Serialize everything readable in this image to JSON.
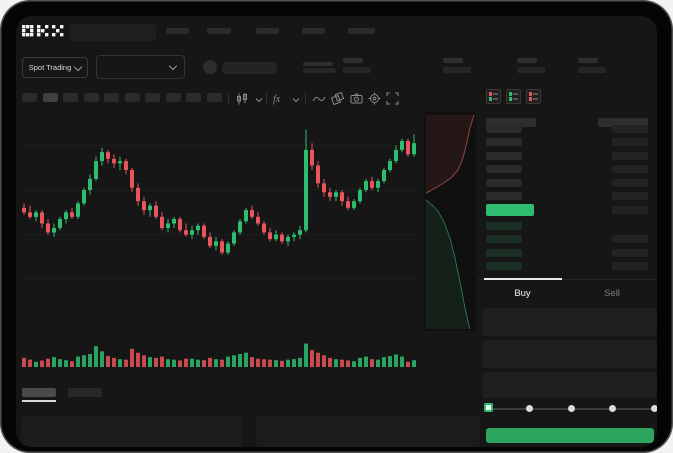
{
  "market_selector": {
    "label": "Spot Trading"
  },
  "toolbar": {
    "timeframe_placeholder_count": 10,
    "icons": [
      "candles-style-icon",
      "chevron-down-icon",
      "indicators-icon",
      "chevron-down-icon",
      "line-tool-icon",
      "compare-icon",
      "camera-icon",
      "settings-icon",
      "fullscreen-icon"
    ]
  },
  "order_book": {
    "layout_icons": [
      "book-all-icon",
      "book-asks-icon",
      "book-bids-icon"
    ],
    "asks": [
      {},
      {},
      {},
      {},
      {},
      {}
    ],
    "bids": [
      {
        "right_bar": false
      },
      {
        "right_bar": true
      },
      {
        "right_bar": true
      },
      {
        "right_bar": true
      }
    ],
    "last_price_highlight": "green"
  },
  "order_panel": {
    "tabs": [
      {
        "label": "Buy",
        "active": true
      },
      {
        "label": "Sell",
        "active": false
      }
    ],
    "slider": {
      "points": [
        0,
        25,
        50,
        75,
        100
      ],
      "value": 0
    }
  },
  "colors": {
    "up": "#2ebd70",
    "down": "#e8555a",
    "submit": "#2da55e",
    "background": "#161616",
    "frame": "#050505"
  },
  "chart_data": {
    "type": "candlestick",
    "title": "",
    "xlabel": "",
    "ylabel": "",
    "ylim": [
      0,
      100
    ],
    "grid_levels": [
      25,
      45,
      65,
      85
    ],
    "up_color": "#2ebd70",
    "down_color": "#e8555a",
    "candles": [
      [
        57,
        59,
        54,
        55
      ],
      [
        55,
        58,
        52,
        53
      ],
      [
        53,
        56,
        51,
        55
      ],
      [
        55,
        56,
        48,
        50
      ],
      [
        50,
        52,
        45,
        46
      ],
      [
        46,
        50,
        44,
        48
      ],
      [
        48,
        53,
        47,
        52
      ],
      [
        52,
        56,
        50,
        55
      ],
      [
        55,
        57,
        52,
        53
      ],
      [
        53,
        60,
        52,
        59
      ],
      [
        59,
        66,
        58,
        65
      ],
      [
        65,
        72,
        63,
        70
      ],
      [
        70,
        80,
        69,
        78
      ],
      [
        78,
        84,
        76,
        82
      ],
      [
        82,
        83,
        77,
        79
      ],
      [
        79,
        81,
        75,
        77
      ],
      [
        77,
        80,
        74,
        78
      ],
      [
        78,
        79,
        72,
        74
      ],
      [
        74,
        75,
        64,
        66
      ],
      [
        66,
        68,
        58,
        60
      ],
      [
        60,
        62,
        54,
        56
      ],
      [
        56,
        59,
        53,
        58
      ],
      [
        58,
        60,
        52,
        53
      ],
      [
        53,
        55,
        47,
        48
      ],
      [
        48,
        52,
        46,
        50
      ],
      [
        50,
        53,
        48,
        52
      ],
      [
        52,
        53,
        46,
        47
      ],
      [
        47,
        50,
        44,
        45
      ],
      [
        45,
        49,
        43,
        47
      ],
      [
        47,
        50,
        45,
        49
      ],
      [
        49,
        50,
        43,
        44
      ],
      [
        44,
        46,
        39,
        40
      ],
      [
        40,
        44,
        38,
        42
      ],
      [
        42,
        43,
        36,
        37
      ],
      [
        37,
        42,
        36,
        41
      ],
      [
        41,
        47,
        40,
        46
      ],
      [
        46,
        52,
        45,
        51
      ],
      [
        51,
        57,
        50,
        56
      ],
      [
        56,
        58,
        52,
        53
      ],
      [
        53,
        55,
        49,
        50
      ],
      [
        50,
        51,
        45,
        46
      ],
      [
        46,
        48,
        42,
        43
      ],
      [
        43,
        47,
        42,
        45
      ],
      [
        45,
        46,
        41,
        42
      ],
      [
        42,
        45,
        40,
        44
      ],
      [
        44,
        46,
        42,
        45
      ],
      [
        45,
        49,
        43,
        47
      ],
      [
        47,
        92,
        46,
        83
      ],
      [
        83,
        86,
        74,
        76
      ],
      [
        76,
        78,
        66,
        68
      ],
      [
        68,
        70,
        62,
        64
      ],
      [
        64,
        66,
        60,
        62
      ],
      [
        62,
        65,
        60,
        64
      ],
      [
        64,
        65,
        58,
        60
      ],
      [
        60,
        62,
        56,
        57
      ],
      [
        57,
        61,
        56,
        60
      ],
      [
        60,
        66,
        59,
        65
      ],
      [
        65,
        70,
        64,
        69
      ],
      [
        69,
        71,
        65,
        66
      ],
      [
        66,
        70,
        64,
        69
      ],
      [
        69,
        75,
        68,
        74
      ],
      [
        74,
        79,
        73,
        78
      ],
      [
        78,
        85,
        77,
        83
      ],
      [
        83,
        88,
        82,
        87
      ],
      [
        87,
        88,
        80,
        81
      ],
      [
        81,
        90,
        80,
        86
      ]
    ],
    "volume": [
      35,
      28,
      20,
      25,
      32,
      38,
      30,
      26,
      22,
      40,
      45,
      50,
      80,
      60,
      42,
      35,
      30,
      28,
      70,
      55,
      45,
      38,
      35,
      40,
      30,
      28,
      25,
      32,
      32,
      28,
      26,
      35,
      30,
      28,
      40,
      45,
      50,
      55,
      38,
      32,
      30,
      28,
      26,
      24,
      28,
      30,
      35,
      90,
      65,
      55,
      45,
      35,
      30,
      28,
      25,
      22,
      35,
      40,
      30,
      28,
      38,
      42,
      48,
      40,
      20,
      26
    ],
    "depth": {
      "ask_line": [
        [
          50,
          3
        ],
        [
          46,
          16
        ],
        [
          43,
          30
        ],
        [
          39,
          46
        ],
        [
          34,
          58
        ],
        [
          27,
          66
        ],
        [
          18,
          72
        ],
        [
          6,
          79
        ],
        [
          2,
          81
        ]
      ],
      "ask_area": [
        [
          2,
          3
        ],
        [
          50,
          3
        ],
        [
          46,
          16
        ],
        [
          43,
          30
        ],
        [
          39,
          46
        ],
        [
          34,
          58
        ],
        [
          27,
          66
        ],
        [
          18,
          72
        ],
        [
          6,
          79
        ],
        [
          2,
          81
        ]
      ],
      "bid_line": [
        [
          2,
          88
        ],
        [
          8,
          93
        ],
        [
          14,
          99
        ],
        [
          20,
          110
        ],
        [
          26,
          126
        ],
        [
          31,
          146
        ],
        [
          36,
          170
        ],
        [
          41,
          196
        ],
        [
          45,
          214
        ],
        [
          46,
          217
        ]
      ],
      "bid_area": [
        [
          2,
          88
        ],
        [
          8,
          93
        ],
        [
          14,
          99
        ],
        [
          20,
          110
        ],
        [
          26,
          126
        ],
        [
          31,
          146
        ],
        [
          36,
          170
        ],
        [
          41,
          196
        ],
        [
          45,
          214
        ],
        [
          46,
          217
        ],
        [
          2,
          217
        ]
      ],
      "ask_fill": "rgba(232,85,90,0.10)",
      "ask_stroke": "rgba(240,110,115,0.55)",
      "bid_fill": "rgba(46,189,112,0.10)",
      "bid_stroke": "rgba(70,200,140,0.50)"
    }
  }
}
